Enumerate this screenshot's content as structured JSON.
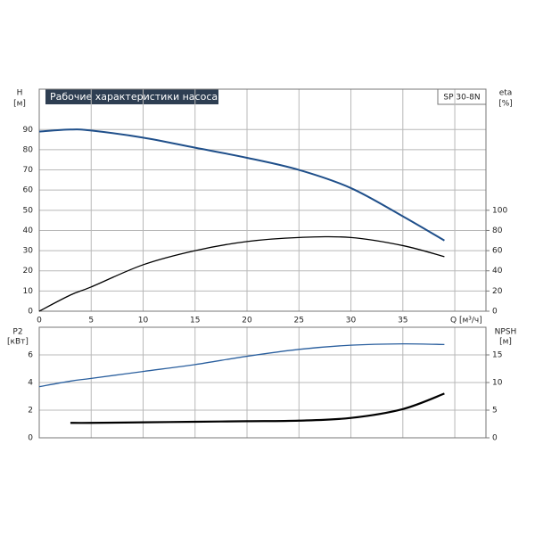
{
  "chart_data": [
    {
      "type": "line",
      "title": "Рабочие характеристики насоса",
      "subtitle": "SP 30-8N",
      "y_label": "H",
      "y_unit": "[м]",
      "y2_label": "eta",
      "y2_unit": "[%]",
      "x": [
        0,
        3,
        5,
        10,
        15,
        20,
        25,
        30,
        35,
        39
      ],
      "xlim": [
        0,
        43
      ],
      "xticks": [
        0,
        5,
        10,
        15,
        20,
        25,
        30,
        35,
        {
          "value": 40,
          "label": "Q [м³/ч]"
        }
      ],
      "ylim": [
        0,
        110
      ],
      "yticks": [
        0,
        10,
        20,
        30,
        40,
        50,
        60,
        70,
        80,
        90
      ],
      "y2lim": [
        0,
        220
      ],
      "y2ticks": [
        0,
        20,
        40,
        60,
        80,
        100
      ],
      "grid": true,
      "series": [
        {
          "color": "#1f4f8a",
          "values": [
            89,
            90,
            89.5,
            86,
            81,
            76,
            70,
            61,
            47,
            35
          ]
        },
        {
          "color": "#000000",
          "axis": "y2",
          "values": [
            0,
            16,
            24,
            46,
            60,
            69,
            73,
            73,
            65,
            54
          ]
        }
      ]
    },
    {
      "type": "line",
      "y_label": "P2",
      "y_unit": "[кВт]",
      "y2_label": "NPSH",
      "y2_unit": "[м]",
      "x": [
        0,
        3,
        5,
        10,
        15,
        20,
        25,
        30,
        35,
        39
      ],
      "xlim": [
        0,
        43
      ],
      "ylim": [
        0,
        8
      ],
      "yticks": [
        0,
        2,
        4,
        6
      ],
      "y2lim": [
        0,
        20
      ],
      "y2ticks": [
        0,
        5,
        10,
        15
      ],
      "grid": true,
      "series": [
        {
          "color": "#2a5f9e",
          "values": [
            3.7,
            4.1,
            4.3,
            4.8,
            5.3,
            5.9,
            6.4,
            6.7,
            6.8,
            6.75
          ]
        },
        {
          "color": "#000000",
          "axis": "y2",
          "values": [
            null,
            2.7,
            2.7,
            2.8,
            2.9,
            3.0,
            3.1,
            3.6,
            5.2,
            8.0
          ]
        }
      ]
    }
  ]
}
